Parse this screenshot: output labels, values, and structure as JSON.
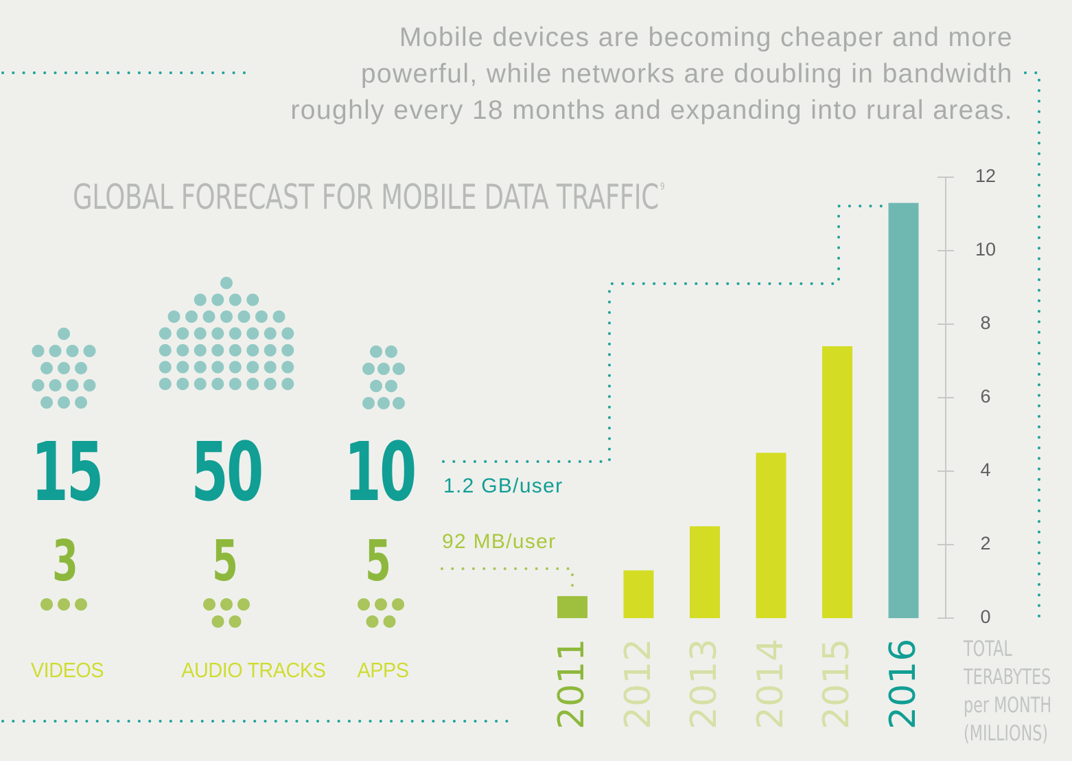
{
  "intro": {
    "lines": [
      "Mobile devices are becoming cheaper and more",
      "powerful, while networks are doubling in bandwidth",
      "roughly every 18 months and expanding into rural areas."
    ]
  },
  "title": {
    "text": "GLOBAL FORECAST FOR MOBILE DATA TRAFFIC",
    "footnote": "9"
  },
  "per_user": {
    "gb": "1.2 GB/user",
    "mb": "92 MB/user"
  },
  "categories": [
    {
      "label": "VIDEOS",
      "big": "15",
      "small": "3"
    },
    {
      "label": "AUDIO TRACKS",
      "big": "50",
      "small": "5"
    },
    {
      "label": "APPS",
      "big": "10",
      "small": "5"
    }
  ],
  "colors": {
    "background": "#eff0ec",
    "teal": "#119e94",
    "teal_bar": "#6fb8b2",
    "teal_dot": "#93c9c4",
    "lime": "#d4dd24",
    "lime_text": "#cfdc31",
    "green": "#8eb83d",
    "green_dot": "#a9c55b",
    "lime_year": "#d6e0a6",
    "axis": "#c8c9c7",
    "dotted": "#21a39a"
  },
  "chart_data": {
    "type": "bar",
    "categories": [
      "2011",
      "2012",
      "2013",
      "2014",
      "2015",
      "2016"
    ],
    "values": [
      0.6,
      1.3,
      2.5,
      4.5,
      7.4,
      11.3
    ],
    "ylim": [
      0,
      12
    ],
    "yticks": [
      "0",
      "2",
      "4",
      "6",
      "8",
      "10",
      "12"
    ],
    "ylabel_lines": [
      "TOTAL",
      "TERABYTES",
      "per MONTH",
      "(MILLIONS)"
    ],
    "bar_colors": [
      "#9fc03f",
      "#d4dd24",
      "#d4dd24",
      "#d4dd24",
      "#d4dd24",
      "#6fb8b2"
    ],
    "year_colors": [
      "#8eb83d",
      "#d6e0a6",
      "#d6e0a6",
      "#d6e0a6",
      "#d6e0a6",
      "#119e94"
    ],
    "axis_side": "right",
    "grid": false
  }
}
